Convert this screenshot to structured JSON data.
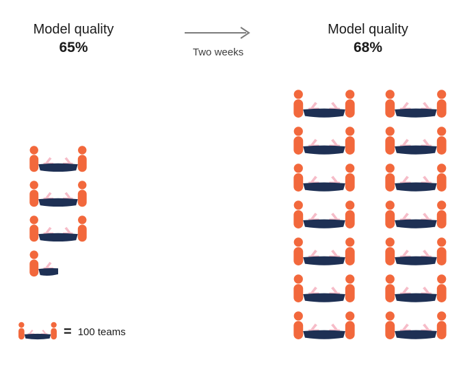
{
  "left_panel": {
    "title": "Model quality",
    "value": "65%"
  },
  "transition": {
    "label": "Two weeks"
  },
  "right_panel": {
    "title": "Model quality",
    "value": "68%"
  },
  "legend": {
    "equals_sign": "=",
    "label": "100 teams"
  },
  "icons": {
    "team_icon": "two-people-seated-at-table-with-laptops"
  },
  "colors": {
    "person_orange": "#F2683C",
    "table_navy": "#1E3054",
    "laptop_pink": "#F6BCC8",
    "arrow_gray": "#7A7A7A",
    "text_dark": "#1B1B1B",
    "subtext": "#3D3D3D"
  },
  "chart_data": {
    "type": "pictograph",
    "unit": {
      "icon": "team-at-table",
      "label": "100 teams",
      "value": 100
    },
    "series": [
      {
        "name": "Model quality",
        "value_label": "65%",
        "icons": 3.5,
        "teams_estimate": 350,
        "columns": 1
      },
      {
        "name": "Model quality",
        "value_label": "68%",
        "icons": 14,
        "teams_estimate": 1400,
        "columns": 2
      }
    ],
    "annotation": "Two weeks",
    "legend": "1 icon = 100 teams",
    "layout": "before-after comparison, arrow between panels, legend bottom-left"
  }
}
